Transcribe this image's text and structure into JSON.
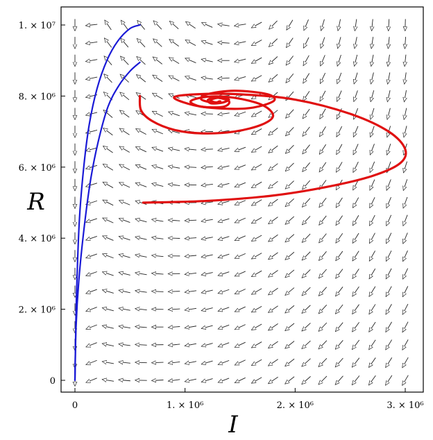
{
  "chart_data": {
    "type": "phase-portrait",
    "title": "",
    "xlabel": "I",
    "ylabel": "R",
    "xlim": [
      -50000,
      3060000
    ],
    "ylim": [
      -80000,
      10280000
    ],
    "grid": false,
    "legend": "none",
    "x_ticks": [
      {
        "value": 0,
        "label": "0"
      },
      {
        "value": 1000000,
        "label": "1. × 10⁶"
      },
      {
        "value": 2000000,
        "label": "2. × 10⁶"
      },
      {
        "value": 3000000,
        "label": "3. × 10⁶"
      }
    ],
    "y_ticks": [
      {
        "value": 0,
        "label": "0"
      },
      {
        "value": 2000000,
        "label": "2. × 10⁶"
      },
      {
        "value": 4000000,
        "label": "4. × 10⁶"
      },
      {
        "value": 6000000,
        "label": "6. × 10⁶"
      },
      {
        "value": 8000000,
        "label": "8. × 10⁶"
      },
      {
        "value": 10000000,
        "label": "1. × 10⁷"
      }
    ],
    "vector_field": {
      "color": "#222222",
      "style": "open-arrowheads",
      "x_grid": [
        0,
        150000,
        300000,
        450000,
        600000,
        750000,
        900000,
        1050000,
        1200000,
        1350000,
        1500000,
        1650000,
        1800000,
        1950000,
        2100000,
        2250000,
        2400000,
        2550000,
        2700000,
        2850000,
        3000000
      ],
      "y_grid": [
        0,
        500000,
        1000000,
        1500000,
        2000000,
        2500000,
        3000000,
        3500000,
        4000000,
        4500000,
        5000000,
        5500000,
        6000000,
        6500000,
        7000000,
        7500000,
        8000000,
        8500000,
        9000000,
        9500000,
        10000000
      ],
      "equilibrium": [
        1250000,
        7750000
      ]
    },
    "series": [
      {
        "color": "#1a1ad6",
        "points": [
          [
            0,
            0
          ],
          [
            5000,
            1000000
          ],
          [
            15000,
            2500000
          ],
          [
            40000,
            4500000
          ],
          [
            80000,
            6000000
          ],
          [
            130000,
            7200000
          ],
          [
            200000,
            8200000
          ],
          [
            290000,
            9000000
          ],
          [
            390000,
            9550000
          ],
          [
            500000,
            9900000
          ],
          [
            590000,
            10000000
          ]
        ]
      },
      {
        "color": "#1a1ad6",
        "points": [
          [
            0,
            0
          ],
          [
            10000,
            1500000
          ],
          [
            35000,
            2800000
          ],
          [
            80000,
            4200000
          ],
          [
            140000,
            5600000
          ],
          [
            210000,
            6700000
          ],
          [
            300000,
            7700000
          ],
          [
            400000,
            8300000
          ],
          [
            500000,
            8700000
          ],
          [
            590000,
            8950000
          ]
        ]
      },
      {
        "color": "#e01010",
        "points": [
          [
            620000,
            5000000
          ],
          [
            1200000,
            5050000
          ],
          [
            1800000,
            5200000
          ],
          [
            2300000,
            5450000
          ],
          [
            2700000,
            5750000
          ],
          [
            2950000,
            6100000
          ],
          [
            3000000,
            6500000
          ],
          [
            2850000,
            7000000
          ],
          [
            2500000,
            7500000
          ],
          [
            2000000,
            7900000
          ],
          [
            1500000,
            8050000
          ],
          [
            1100000,
            8050000
          ],
          [
            900000,
            7950000
          ],
          [
            1150000,
            7700000
          ],
          [
            1550000,
            7650000
          ],
          [
            1800000,
            7850000
          ],
          [
            1750000,
            8050000
          ],
          [
            1450000,
            8150000
          ],
          [
            1200000,
            8050000
          ],
          [
            1150000,
            7900000
          ],
          [
            1300000,
            7800000
          ],
          [
            1400000,
            7900000
          ],
          [
            1300000,
            7950000
          ],
          [
            1230000,
            7880000
          ],
          [
            1280000,
            7820000
          ],
          [
            1310000,
            7850000
          ]
        ]
      },
      {
        "color": "#e01010",
        "points": [
          [
            590000,
            8000000
          ],
          [
            600000,
            7600000
          ],
          [
            700000,
            7300000
          ],
          [
            900000,
            7050000
          ],
          [
            1150000,
            6950000
          ],
          [
            1450000,
            7000000
          ],
          [
            1700000,
            7200000
          ],
          [
            1800000,
            7450000
          ],
          [
            1700000,
            7750000
          ],
          [
            1450000,
            7950000
          ],
          [
            1200000,
            7980000
          ],
          [
            1050000,
            7850000
          ],
          [
            1150000,
            7700000
          ],
          [
            1350000,
            7700000
          ],
          [
            1400000,
            7850000
          ],
          [
            1300000,
            7950000
          ],
          [
            1210000,
            7900000
          ],
          [
            1230000,
            7800000
          ],
          [
            1300000,
            7800000
          ],
          [
            1320000,
            7850000
          ]
        ]
      }
    ]
  }
}
